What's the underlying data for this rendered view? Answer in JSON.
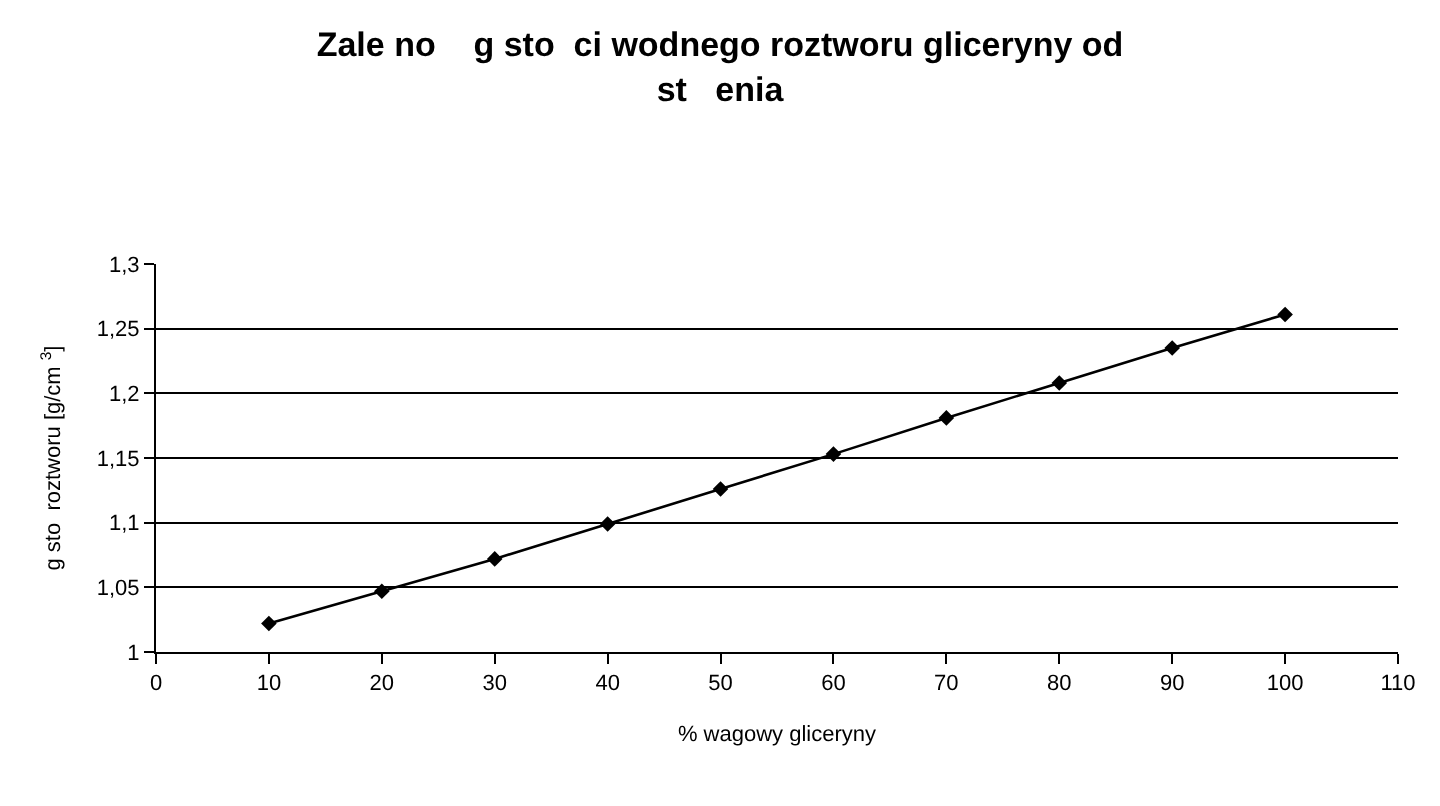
{
  "chart_data": {
    "type": "line",
    "title": "Zale no    g sto  ci wodnego roztworu gliceryny od\nst   enia",
    "xlabel": "% wagowy gliceryny",
    "ylabel": "g sto  roztworu [g/cm $^{3}$]",
    "x": [
      10,
      20,
      30,
      40,
      50,
      60,
      70,
      80,
      90,
      100
    ],
    "series": [
      {
        "color": "#000000",
        "values": [
          1.022,
          1.047,
          1.072,
          1.099,
          1.126,
          1.153,
          1.181,
          1.208,
          1.235,
          1.261
        ]
      }
    ],
    "xlim": [
      0,
      110
    ],
    "xticks": [
      0,
      10,
      20,
      30,
      40,
      50,
      60,
      70,
      80,
      90,
      100,
      110
    ],
    "ylim": [
      1,
      1.3
    ],
    "yticks": [
      1,
      {
        "value": 1.05,
        "label": "1,05"
      },
      {
        "value": 1.1,
        "label": "1,1"
      },
      {
        "value": 1.15,
        "label": "1,15"
      },
      {
        "value": 1.2,
        "label": "1,2"
      },
      {
        "value": 1.25,
        "label": "1,25"
      },
      {
        "value": 1.3,
        "label": "1,3"
      }
    ],
    "grid": "y",
    "marker": "diamond",
    "line_style": "solid"
  }
}
